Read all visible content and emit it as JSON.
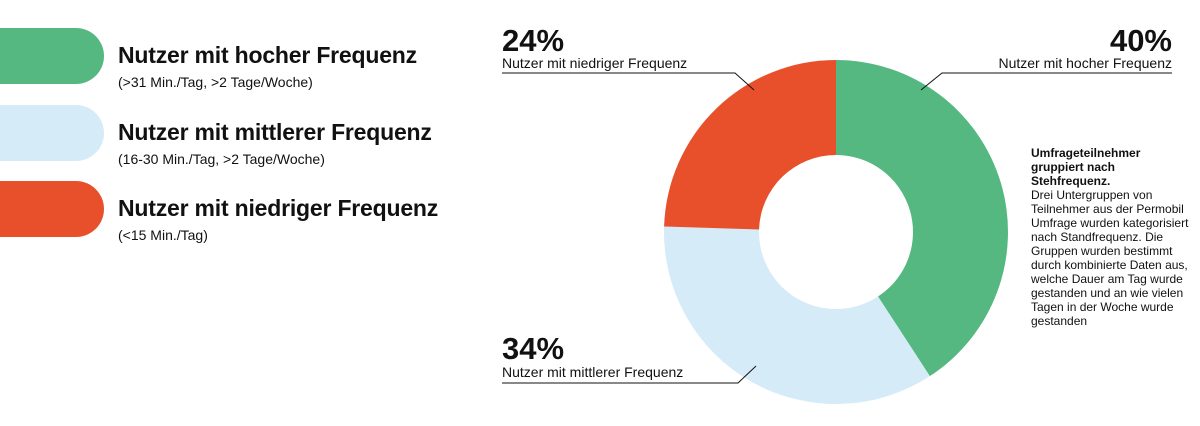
{
  "legend": {
    "items": [
      {
        "title": "Nutzer mit hocher Frequenz",
        "subtitle": "(>31 Min./Tag, >2 Tage/Woche)",
        "color": "#55b881"
      },
      {
        "title": "Nutzer mit mittlerer Frequenz",
        "subtitle": "(16-30 Min./Tag, >2 Tage/Woche)",
        "color": "#d5ebf8"
      },
      {
        "title": "Nutzer mit niedriger Frequenz",
        "subtitle": "(<15 Min./Tag)",
        "color": "#e8502b"
      }
    ]
  },
  "note": {
    "title": "Umfrageteilnehmer gruppiert nach Stehfrequenz.",
    "body": "Drei Untergruppen von Teilnehmer aus der Permobil Umfrage wurden kategorisiert nach Standfrequenz. Die Gruppen wurden bestimmt durch kombinierte Daten aus, welche Dauer am Tag wurde gestanden und an wie vielen Tagen in der Woche wurde gestanden"
  },
  "chart_data": {
    "type": "pie",
    "donut": true,
    "title": "",
    "categories": [
      "Nutzer mit hocher Frequenz",
      "Nutzer mit mittlerer Frequenz",
      "Nutzer mit niedriger Frequenz"
    ],
    "values": [
      40,
      34,
      24
    ],
    "value_labels": [
      "40%",
      "34%",
      "24%"
    ],
    "colors": [
      "#55b881",
      "#d5ebf8",
      "#e8502b"
    ],
    "start_angle_deg": 0,
    "direction": "clockwise"
  }
}
